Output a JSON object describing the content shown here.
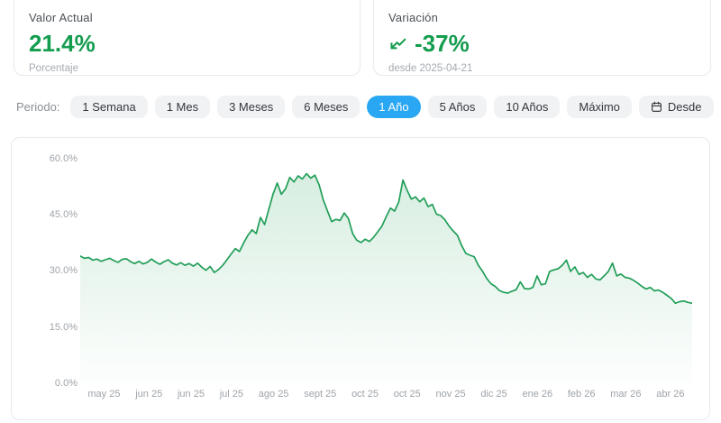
{
  "cards": {
    "current": {
      "title": "Valor Actual",
      "value": "21.4%",
      "subtitle": "Porcentaje"
    },
    "variation": {
      "title": "Variación",
      "value": "-37%",
      "subtitle": "desde 2025-04-21"
    }
  },
  "period": {
    "label": "Periodo:",
    "active": "1 Año",
    "options": [
      {
        "label": "1 Semana"
      },
      {
        "label": "1 Mes"
      },
      {
        "label": "3 Meses"
      },
      {
        "label": "6 Meses"
      },
      {
        "label": "1 Año"
      },
      {
        "label": "5 Años"
      },
      {
        "label": "10 Años"
      },
      {
        "label": "Máximo"
      },
      {
        "label": "Desde",
        "icon": "calendar"
      }
    ]
  },
  "colors": {
    "green_text": "#149c4f",
    "green_line": "#219e58",
    "green_fill": "#22a058",
    "active_blue": "#2aa7f2",
    "active_blue_text": "#ffffff",
    "button_bg": "#f1f2f4",
    "axis_text": "#9ea3a9"
  },
  "chart_data": {
    "type": "area",
    "title": "",
    "xlabel": "",
    "ylabel": "",
    "grid": false,
    "legend": null,
    "ylim": [
      0,
      63.6
    ],
    "y_ticks": [
      {
        "label": "60.0%",
        "value": 60
      },
      {
        "label": "45.0%",
        "value": 45
      },
      {
        "label": "30.0%",
        "value": 30
      },
      {
        "label": "15.0%",
        "value": 15
      },
      {
        "label": "0.0%",
        "value": 0
      }
    ],
    "x_labels": [
      "may 25",
      "jun 25",
      "jun 25",
      "jul 25",
      "ago 25",
      "sept 25",
      "oct 25",
      "oct 25",
      "nov 25",
      "dic 25",
      "ene 26",
      "feb 26",
      "mar 26",
      "abr 26"
    ],
    "series_name": "Porcentaje",
    "values": [
      34.0,
      33.4,
      33.6,
      32.9,
      33.2,
      32.6,
      33.0,
      33.4,
      32.8,
      32.3,
      33.1,
      33.3,
      32.5,
      32.0,
      32.6,
      31.9,
      32.3,
      33.2,
      32.4,
      31.8,
      32.5,
      33.0,
      32.1,
      31.6,
      32.2,
      31.5,
      32.0,
      31.3,
      32.1,
      31.0,
      30.2,
      31.2,
      29.6,
      30.4,
      31.5,
      33.0,
      34.5,
      36.0,
      35.2,
      37.5,
      39.5,
      41.0,
      40.0,
      44.3,
      42.4,
      46.5,
      50.5,
      53.5,
      50.5,
      52.0,
      55.0,
      53.8,
      55.4,
      54.6,
      56.0,
      54.8,
      55.6,
      53.0,
      49.0,
      46.0,
      43.2,
      43.8,
      43.5,
      45.5,
      44.0,
      40.0,
      38.2,
      37.6,
      38.5,
      37.9,
      39.0,
      40.5,
      42.0,
      44.5,
      46.8,
      46.0,
      48.5,
      54.3,
      51.5,
      49.2,
      49.8,
      48.5,
      49.5,
      47.2,
      47.8,
      45.2,
      44.8,
      43.7,
      42.0,
      40.7,
      39.5,
      36.8,
      34.7,
      34.2,
      33.8,
      31.5,
      29.9,
      28.0,
      26.6,
      25.9,
      24.8,
      24.3,
      24.1,
      24.6,
      25.0,
      27.1,
      25.3,
      25.2,
      25.6,
      28.7,
      26.3,
      26.6,
      29.9,
      30.3,
      30.6,
      31.5,
      32.9,
      29.9,
      31.1,
      29.1,
      29.6,
      28.3,
      29.1,
      27.9,
      27.6,
      28.7,
      29.9,
      32.1,
      28.7,
      29.2,
      28.3,
      28.1,
      27.5,
      26.8,
      25.9,
      25.2,
      25.6,
      24.7,
      24.9,
      24.3,
      23.5,
      22.7,
      21.4,
      21.8,
      22.0,
      21.6,
      21.4
    ]
  }
}
